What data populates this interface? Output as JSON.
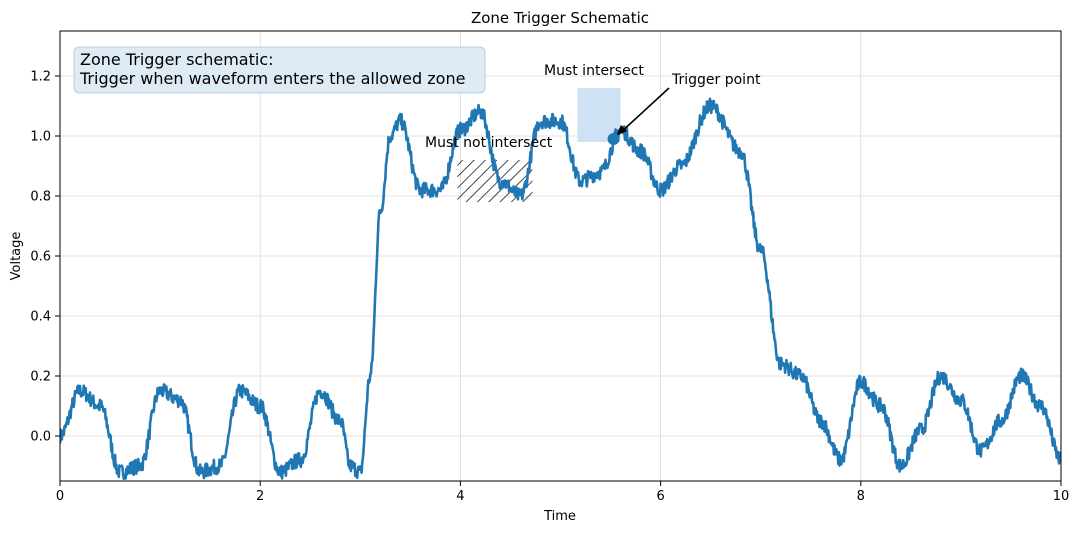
{
  "chart_data": {
    "type": "line",
    "title": "Zone Trigger Schematic",
    "xlabel": "Time",
    "ylabel": "Voltage",
    "xlim": [
      0,
      10
    ],
    "ylim": [
      -0.15,
      1.35
    ],
    "x_ticks": [
      0,
      2,
      4,
      6,
      8,
      10
    ],
    "y_ticks": [
      0.0,
      0.2,
      0.4,
      0.6,
      0.8,
      1.0,
      1.2
    ],
    "x_tick_labels": [
      "0",
      "2",
      "4",
      "6",
      "8",
      "10"
    ],
    "y_tick_labels": [
      "0.0",
      "0.2",
      "0.4",
      "0.6",
      "0.8",
      "1.0",
      "1.2"
    ],
    "grid": true,
    "series": [
      {
        "color": "#1f77b4",
        "x": [
          0.0,
          0.2,
          0.4,
          0.6,
          0.8,
          1.0,
          1.2,
          1.4,
          1.6,
          1.8,
          2.0,
          2.2,
          2.4,
          2.6,
          2.8,
          2.9,
          3.0,
          3.1,
          3.2,
          3.3,
          3.4,
          3.6,
          3.8,
          4.0,
          4.2,
          4.4,
          4.6,
          4.8,
          5.0,
          5.2,
          5.4,
          5.6,
          5.8,
          6.0,
          6.2,
          6.5,
          6.8,
          7.0,
          7.2,
          7.4,
          7.6,
          7.8,
          8.0,
          8.2,
          8.4,
          8.6,
          8.8,
          9.0,
          9.2,
          9.4,
          9.6,
          9.8,
          10.0
        ],
        "y": [
          0.0,
          0.15,
          0.1,
          -0.12,
          -0.1,
          0.15,
          0.12,
          -0.12,
          -0.1,
          0.15,
          0.1,
          -0.12,
          -0.08,
          0.15,
          0.05,
          -0.1,
          -0.12,
          0.2,
          0.75,
          1.0,
          1.05,
          0.82,
          0.82,
          1.02,
          1.08,
          0.85,
          0.8,
          1.05,
          1.05,
          0.85,
          0.88,
          1.02,
          0.95,
          0.82,
          0.9,
          1.1,
          0.95,
          0.62,
          0.24,
          0.2,
          0.05,
          -0.08,
          0.18,
          0.1,
          -0.1,
          0.02,
          0.2,
          0.12,
          -0.05,
          0.05,
          0.2,
          0.1,
          -0.08
        ]
      }
    ],
    "annotations": {
      "info_box_line1": "Zone Trigger schematic:",
      "info_box_line2": "Trigger when waveform enters the allowed zone",
      "must_not_label": "Must not intersect",
      "must_not_zone": {
        "x": [
          3.97,
          4.72
        ],
        "y": [
          0.78,
          0.92
        ]
      },
      "must_label": "Must intersect",
      "must_zone": {
        "x": [
          5.17,
          5.6
        ],
        "y": [
          0.98,
          1.16
        ]
      },
      "trigger_label": "Trigger point",
      "trigger_point": {
        "x": 5.53,
        "y": 0.99
      },
      "zone_color": "#cfe2f3",
      "info_box_color": "#deeaf4"
    }
  }
}
